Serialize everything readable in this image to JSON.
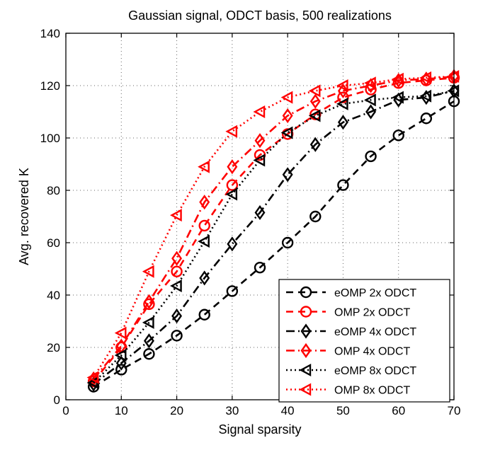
{
  "chart_data": {
    "type": "line",
    "title": "Gaussian signal, ODCT basis, 500 realizations",
    "xlabel": "Signal sparsity",
    "ylabel": "Avg. recovered K",
    "xlim": [
      0,
      70
    ],
    "ylim": [
      0,
      140
    ],
    "xticks": [
      0,
      10,
      20,
      30,
      40,
      50,
      60,
      70
    ],
    "yticks": [
      0,
      20,
      40,
      60,
      80,
      100,
      120,
      140
    ],
    "grid": true,
    "legend_position": "bottom-right",
    "x": [
      5,
      10,
      15,
      20,
      25,
      30,
      35,
      40,
      45,
      50,
      55,
      60,
      65,
      70
    ],
    "series": [
      {
        "name": "eOMP 2x ODCT",
        "color": "#000000",
        "dash": "dashed",
        "marker": "circle",
        "values": [
          5,
          11.5,
          17.5,
          24.5,
          32.5,
          41.5,
          50.5,
          60,
          70,
          82,
          93,
          101,
          107.5,
          114
        ]
      },
      {
        "name": "OMP 2x ODCT",
        "color": "#ff0000",
        "dash": "dashed",
        "marker": "circle",
        "values": [
          7,
          20,
          36.5,
          49,
          66.5,
          82,
          93.5,
          101.5,
          109,
          115.5,
          118.5,
          121,
          122,
          123
        ]
      },
      {
        "name": "eOMP 4x ODCT",
        "color": "#000000",
        "dash": "dashdot",
        "marker": "diamond",
        "values": [
          6,
          14,
          22.5,
          32,
          46.5,
          59.5,
          71.5,
          86,
          97.5,
          106,
          110,
          114.5,
          115.5,
          118
        ]
      },
      {
        "name": "OMP 4x ODCT",
        "color": "#ff0000",
        "dash": "dashdot",
        "marker": "diamond",
        "values": [
          8,
          20.5,
          37.5,
          54,
          75.5,
          89,
          99,
          108.5,
          114,
          118,
          120,
          122,
          122.5,
          123.5
        ]
      },
      {
        "name": "eOMP 8x ODCT",
        "color": "#000000",
        "dash": "dotted",
        "marker": "triangle-left",
        "values": [
          6.5,
          17,
          29.5,
          43.5,
          60.5,
          78.5,
          91.5,
          102,
          108.5,
          113,
          114.5,
          115.5,
          116,
          118
        ]
      },
      {
        "name": "OMP 8x ODCT",
        "color": "#ff0000",
        "dash": "dotted",
        "marker": "triangle-left",
        "values": [
          8.5,
          25.5,
          49,
          70.5,
          89,
          102.5,
          110,
          115.5,
          118,
          120,
          121,
          122.5,
          123,
          123.5
        ]
      }
    ]
  }
}
